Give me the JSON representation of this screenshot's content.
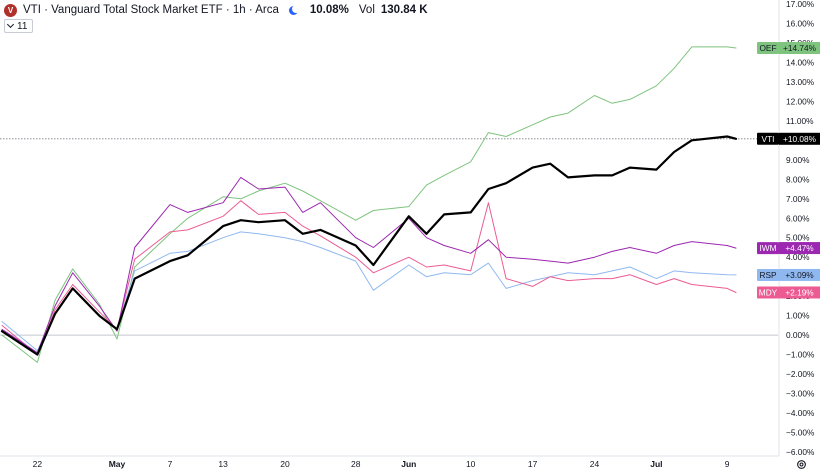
{
  "header": {
    "logo_letter": "V",
    "title": "VTI · Vanguard Total Stock Market ETF · 1h · Arca",
    "session_icon": "moon-icon",
    "change_pct": "10.08%",
    "volume_label": "Vol",
    "volume_value": "130.84 K",
    "indicator_count": "11"
  },
  "colors": {
    "VTI": "#000000",
    "OEF": "#7ec47e",
    "IWM": "#9c27b0",
    "RSP": "#90b8f0",
    "MDY": "#ec5c93"
  },
  "chart_data": {
    "type": "line",
    "y_unit": "%",
    "ylim": [
      -6,
      17
    ],
    "y_ticks": [
      "17.00%",
      "16.00%",
      "15.00%",
      "14.00%",
      "13.00%",
      "12.00%",
      "11.00%",
      "10.00%",
      "9.00%",
      "8.00%",
      "7.00%",
      "6.00%",
      "5.00%",
      "4.00%",
      "3.00%",
      "2.00%",
      "1.00%",
      "0.00%",
      "−1.00%",
      "−2.00%",
      "−3.00%",
      "−4.00%",
      "−5.00%",
      "−6.00%"
    ],
    "x_ticks": [
      {
        "label": "22",
        "date": "Apr 22",
        "bold": false
      },
      {
        "label": "May",
        "date": "May 1",
        "bold": true
      },
      {
        "label": "7",
        "date": "May 7",
        "bold": false
      },
      {
        "label": "13",
        "date": "May 13",
        "bold": false
      },
      {
        "label": "20",
        "date": "May 20",
        "bold": false
      },
      {
        "label": "28",
        "date": "May 28",
        "bold": false
      },
      {
        "label": "Jun",
        "date": "Jun 3",
        "bold": true
      },
      {
        "label": "10",
        "date": "Jun 10",
        "bold": false
      },
      {
        "label": "17",
        "date": "Jun 17",
        "bold": false
      },
      {
        "label": "24",
        "date": "Jun 24",
        "bold": false
      },
      {
        "label": "Jul",
        "date": "Jul 1",
        "bold": true
      },
      {
        "label": "9",
        "date": "Jul 9",
        "bold": false
      }
    ],
    "x_dates": [
      "Apr 18",
      "Apr 22",
      "Apr 24",
      "Apr 26",
      "Apr 29",
      "May 1",
      "May 3",
      "May 7",
      "May 9",
      "May 13",
      "May 15",
      "May 17",
      "May 20",
      "May 22",
      "May 24",
      "May 28",
      "May 30",
      "Jun 3",
      "Jun 5",
      "Jun 7",
      "Jun 10",
      "Jun 12",
      "Jun 14",
      "Jun 17",
      "Jun 19",
      "Jun 21",
      "Jun 24",
      "Jun 26",
      "Jun 28",
      "Jul 1",
      "Jul 3",
      "Jul 5",
      "Jul 9",
      "Jul 10"
    ],
    "x_dates_note": "",
    "baseline_value": 0,
    "series": [
      {
        "name": "OEF",
        "label": "OEF",
        "value_label": "+14.74%",
        "last": 14.74,
        "width": 1,
        "values": [
          0.0,
          -1.4,
          1.8,
          3.4,
          1.6,
          -0.2,
          3.5,
          5.2,
          6.0,
          7.1,
          7.0,
          7.4,
          7.8,
          7.4,
          6.9,
          5.9,
          6.4,
          6.6,
          7.7,
          8.2,
          8.9,
          10.4,
          10.2,
          10.8,
          11.2,
          11.4,
          12.3,
          11.9,
          12.1,
          12.8,
          13.7,
          14.8,
          14.8,
          14.74
        ]
      },
      {
        "name": "VTI",
        "label": "VTI",
        "value_label": "+10.08%",
        "last": 10.08,
        "width": 2.2,
        "values": [
          0.2,
          -1.0,
          1.1,
          2.4,
          1.0,
          0.3,
          2.9,
          3.8,
          4.1,
          5.6,
          5.9,
          5.8,
          5.9,
          5.2,
          5.4,
          4.6,
          3.6,
          6.1,
          5.2,
          6.2,
          6.3,
          7.5,
          7.8,
          8.6,
          8.8,
          8.1,
          8.2,
          8.2,
          8.6,
          8.5,
          9.4,
          10.0,
          10.2,
          10.08
        ]
      },
      {
        "name": "IWM",
        "label": "IWM",
        "value_label": "+4.47%",
        "last": 4.47,
        "width": 1,
        "values": [
          0.3,
          -0.9,
          1.5,
          3.2,
          1.5,
          0.2,
          4.5,
          6.7,
          6.3,
          6.8,
          8.1,
          7.5,
          7.6,
          6.3,
          6.8,
          5.0,
          4.5,
          6.0,
          5.0,
          4.6,
          4.2,
          4.9,
          4.0,
          3.9,
          3.8,
          3.7,
          4.0,
          4.3,
          4.5,
          4.2,
          4.6,
          4.8,
          4.6,
          4.47
        ]
      },
      {
        "name": "RSP",
        "label": "RSP",
        "value_label": "+3.09%",
        "last": 3.09,
        "width": 1,
        "values": [
          0.7,
          -0.8,
          1.1,
          2.4,
          1.0,
          0.3,
          3.3,
          4.2,
          4.3,
          5.0,
          5.3,
          5.2,
          5.0,
          4.8,
          4.5,
          3.8,
          2.3,
          3.6,
          3.0,
          3.2,
          3.1,
          3.7,
          2.4,
          2.8,
          3.0,
          3.2,
          3.1,
          3.3,
          3.5,
          2.9,
          3.3,
          3.2,
          3.1,
          3.09
        ]
      },
      {
        "name": "MDY",
        "label": "MDY",
        "value_label": "+2.19%",
        "last": 2.19,
        "width": 1,
        "values": [
          0.5,
          -1.0,
          1.3,
          2.6,
          1.2,
          0.3,
          3.9,
          5.3,
          5.4,
          6.1,
          6.9,
          6.2,
          6.3,
          5.6,
          5.1,
          4.0,
          3.2,
          4.0,
          3.5,
          3.6,
          3.3,
          6.8,
          2.9,
          2.5,
          3.0,
          2.8,
          2.9,
          2.9,
          3.1,
          2.6,
          2.9,
          2.6,
          2.4,
          2.19
        ]
      }
    ]
  }
}
